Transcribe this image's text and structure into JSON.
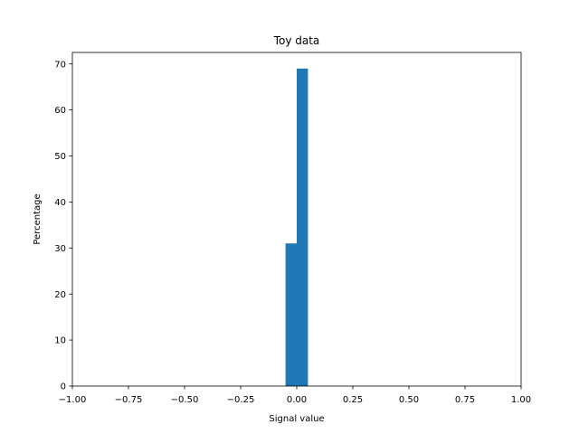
{
  "chart_data": {
    "type": "bar",
    "title": "Toy data",
    "xlabel": "Signal value",
    "ylabel": "Percentage",
    "xlim": [
      -1.0,
      1.0
    ],
    "ylim": [
      0,
      72.5
    ],
    "xticks": [
      -1.0,
      -0.75,
      -0.5,
      -0.25,
      0.0,
      0.25,
      0.5,
      0.75,
      1.0
    ],
    "xtick_labels": [
      "−1.00",
      "−0.75",
      "−0.50",
      "−0.25",
      "0.00",
      "0.25",
      "0.50",
      "0.75",
      "1.00"
    ],
    "yticks": [
      0,
      10,
      20,
      30,
      40,
      50,
      60,
      70
    ],
    "ytick_labels": [
      "0",
      "10",
      "20",
      "30",
      "40",
      "50",
      "60",
      "70"
    ],
    "grid": false,
    "legend": "none",
    "bar_color": "#1f77b4",
    "bins": [
      {
        "x_start": -0.05,
        "x_end": 0.0,
        "value": 31
      },
      {
        "x_start": 0.0,
        "x_end": 0.05,
        "value": 69
      }
    ]
  }
}
